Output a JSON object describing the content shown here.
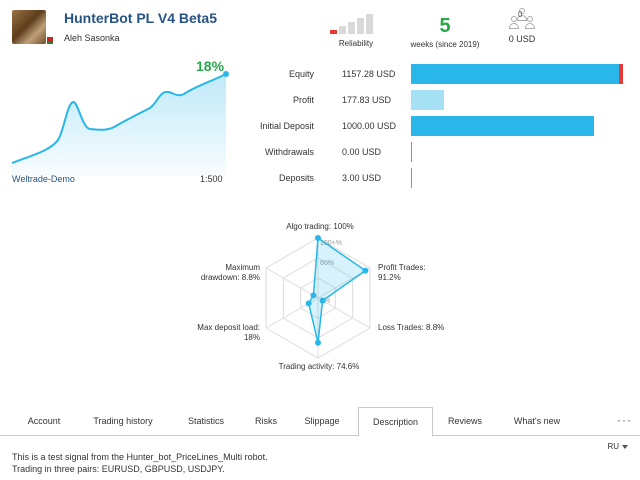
{
  "header": {
    "title": "HunterBot PL V4 Beta5",
    "author": "Aleh Sasonka",
    "reliability_label": "Reliability",
    "reliability_level": 0.2,
    "weeks_value": "5",
    "weeks_label": "weeks (since 2019)",
    "subscribers_count": "0",
    "price": "0 USD"
  },
  "growth": {
    "percent": "18%",
    "broker": "Weltrade-Demo",
    "leverage": "1:500",
    "color": "#29b6e8"
  },
  "stats": [
    {
      "label": "Equity",
      "value": "1157.28 USD",
      "amount": 1157.28
    },
    {
      "label": "Profit",
      "value": "177.83 USD",
      "amount": 177.83
    },
    {
      "label": "Initial Deposit",
      "value": "1000.00 USD",
      "amount": 1000.0
    },
    {
      "label": "Withdrawals",
      "value": "0.00 USD",
      "amount": 0.0
    },
    {
      "label": "Deposits",
      "value": "3.00 USD",
      "amount": 3.0
    }
  ],
  "colors": {
    "brand_blue": "#275384",
    "accent_green": "#27a64a",
    "bar_blue": "#29b6e8",
    "bar_light": "#a6e0f5",
    "loss_red": "#e53935"
  },
  "radar": {
    "scale_labels": [
      "100+%",
      "60%",
      "0%"
    ],
    "axes": [
      {
        "label": "Algo trading: 100%",
        "value": 1.0
      },
      {
        "label": "Profit Trades:\n91.2%",
        "value": 0.912
      },
      {
        "label": "Loss Trades: 8.8%",
        "value": 0.088
      },
      {
        "label": "Trading activity: 74.6%",
        "value": 0.746
      },
      {
        "label": "Max deposit load:\n18%",
        "value": 0.18
      },
      {
        "label": "Maximum\ndrawdown: 8.8%",
        "value": 0.088
      }
    ]
  },
  "tabs": [
    {
      "label": "Account",
      "active": false
    },
    {
      "label": "Trading history",
      "active": false
    },
    {
      "label": "Statistics",
      "active": false
    },
    {
      "label": "Risks",
      "active": false
    },
    {
      "label": "Slippage",
      "active": false
    },
    {
      "label": "Description",
      "active": true
    },
    {
      "label": "Reviews",
      "active": false
    },
    {
      "label": "What's new",
      "active": false
    }
  ],
  "more_label": "···",
  "language": "RU",
  "description": {
    "line1": "This is a test signal from the Hunter_bot_PriceLines_Multi robot.",
    "line2": "Trading in three pairs: EURUSD, GBPUSD, USDJPY."
  }
}
